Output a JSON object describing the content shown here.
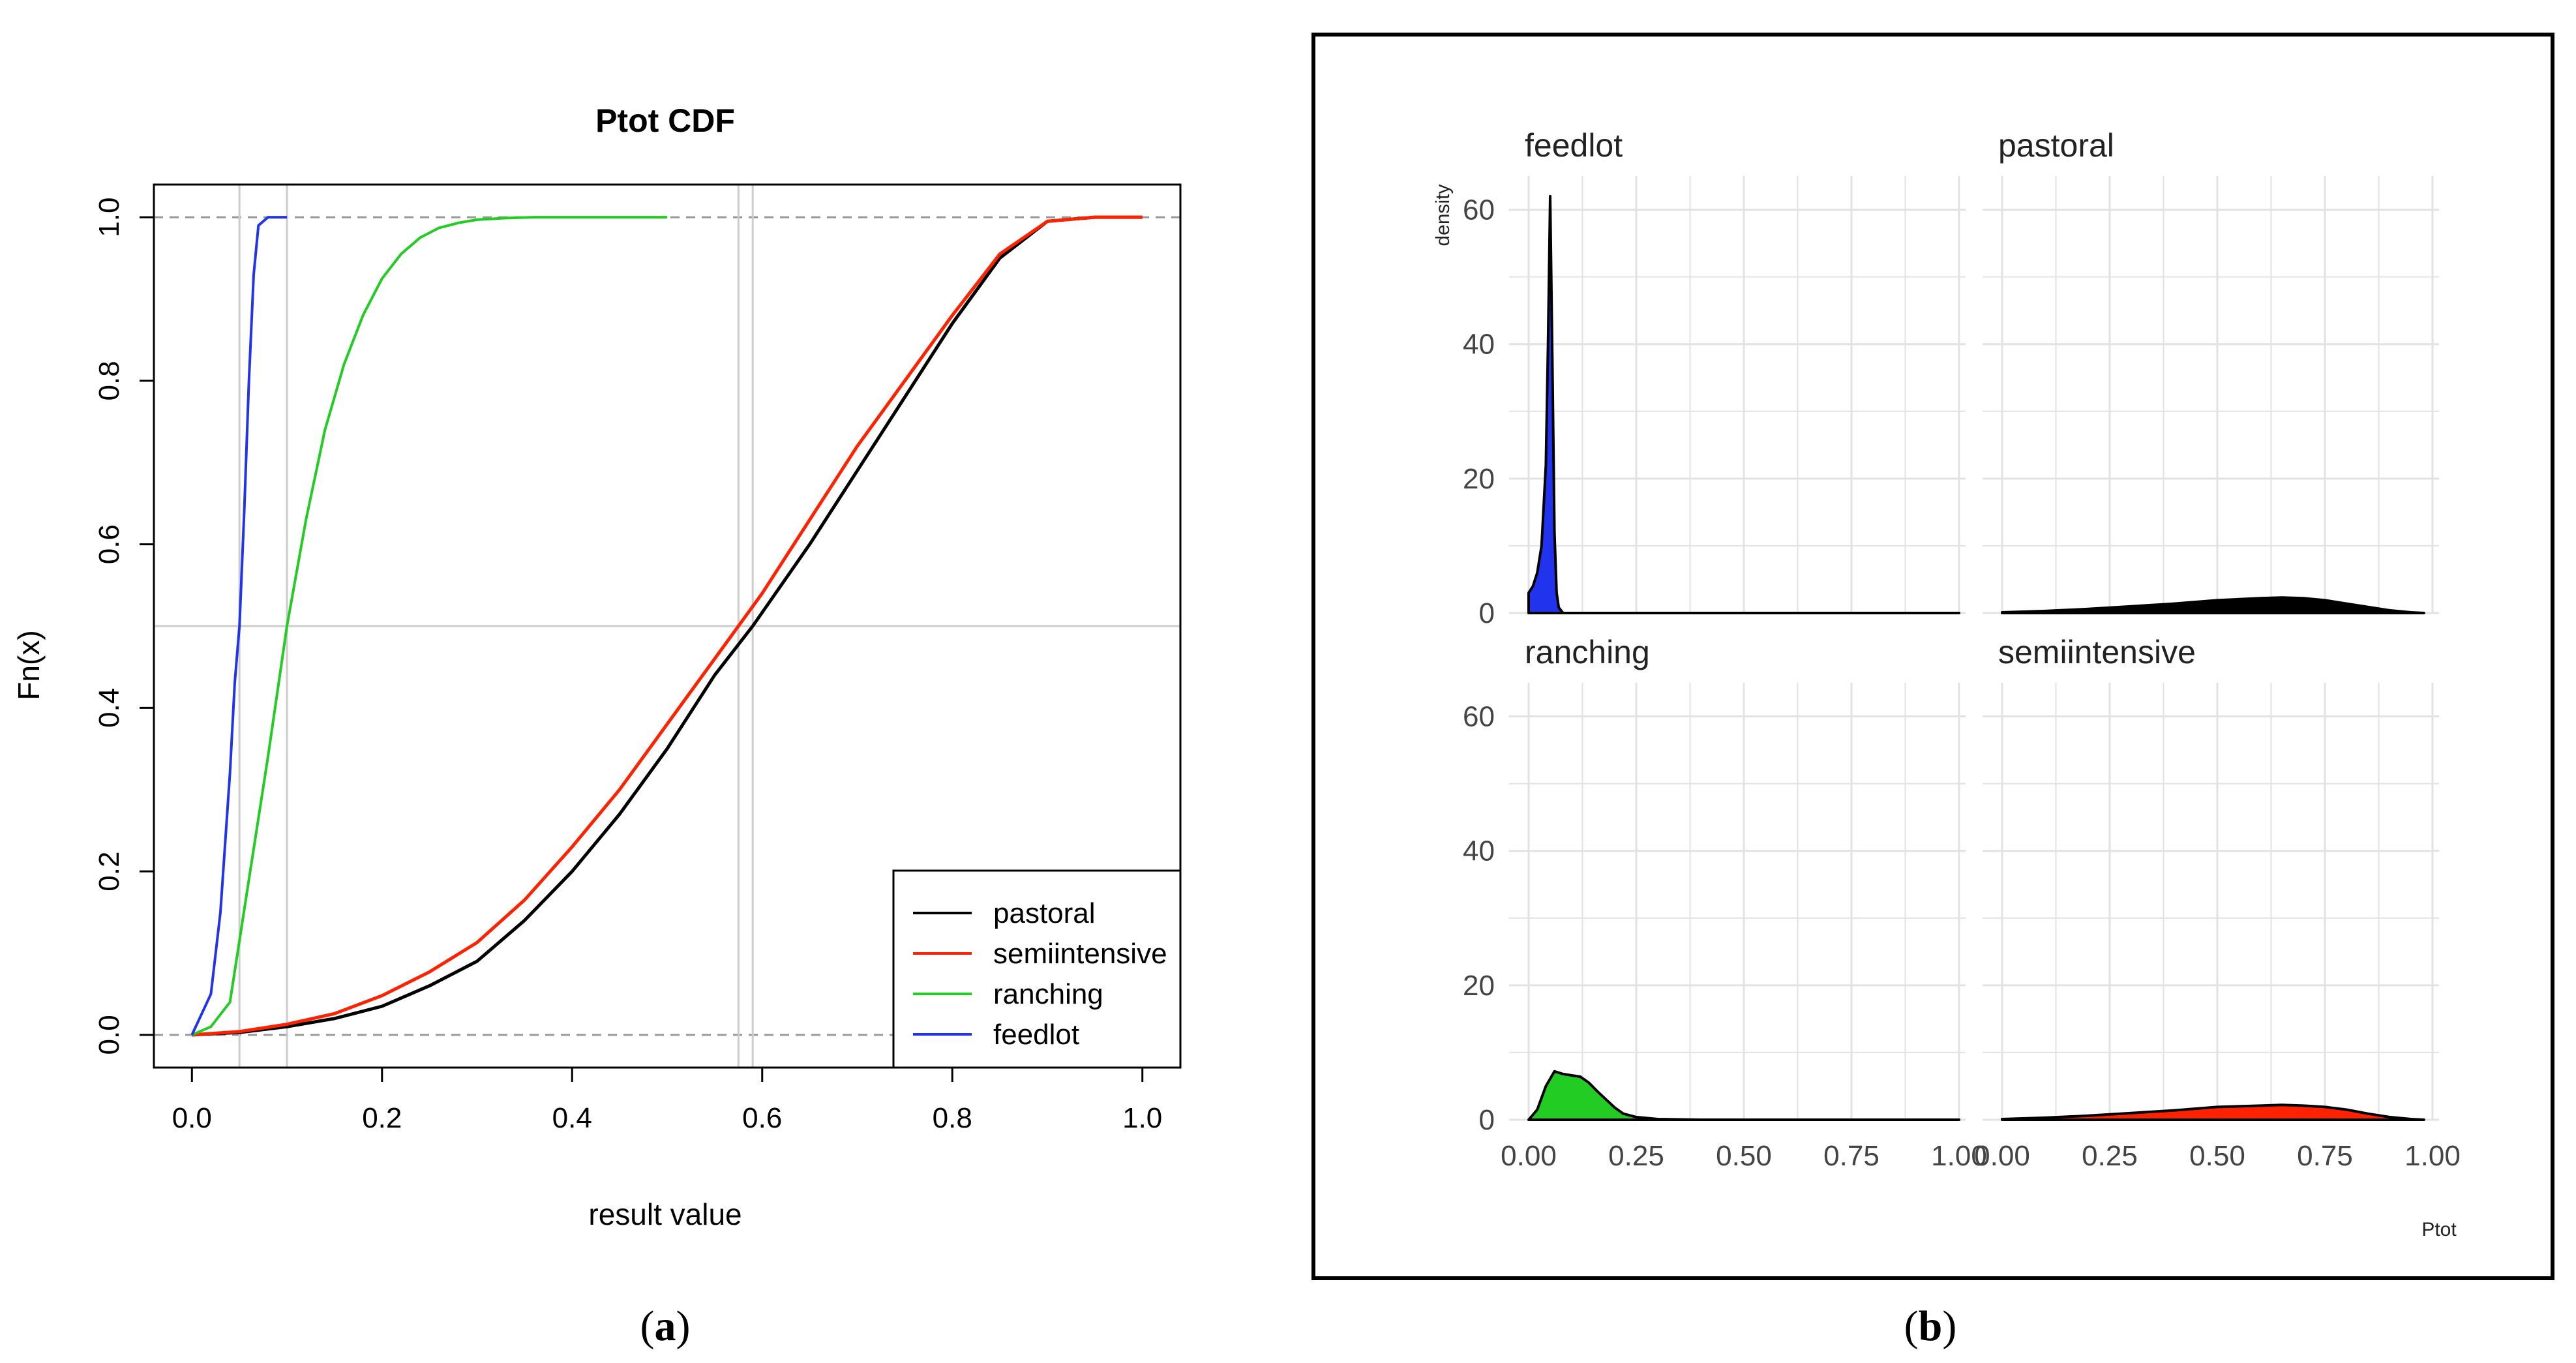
{
  "panels": {
    "a": {
      "caption_open": "(",
      "caption_letter": "a",
      "caption_close": ")"
    },
    "b": {
      "caption_open": "(",
      "caption_letter": "b",
      "caption_close": ")"
    }
  },
  "colors": {
    "pastoral": "#000000",
    "semiintensive": "#ff2200",
    "ranching": "#22cc22",
    "feedlot": "#2233ee",
    "gridline": "#cccccc",
    "facet_grid": "#e2e2e2"
  },
  "chart_data": [
    {
      "type": "line",
      "title": "Ptot CDF",
      "xlabel": "result value",
      "ylabel": "Fn(x)",
      "xlim": [
        -0.04,
        1.04
      ],
      "ylim": [
        -0.04,
        1.04
      ],
      "xticks": [
        "0.0",
        "0.2",
        "0.4",
        "0.6",
        "0.8",
        "1.0"
      ],
      "yticks": [
        "0.0",
        "0.2",
        "0.4",
        "0.6",
        "0.8",
        "1.0"
      ],
      "reference_lines": {
        "horizontal": [
          0.0,
          0.5,
          1.0
        ],
        "vertical": [
          0.05,
          0.1,
          0.575,
          0.59
        ]
      },
      "legend_position": "bottom-right",
      "series": [
        {
          "name": "pastoral",
          "x": [
            0.0,
            0.05,
            0.1,
            0.15,
            0.2,
            0.25,
            0.3,
            0.35,
            0.4,
            0.45,
            0.5,
            0.55,
            0.59,
            0.65,
            0.7,
            0.75,
            0.8,
            0.85,
            0.9,
            0.95,
            1.0
          ],
          "y": [
            0.0,
            0.003,
            0.01,
            0.02,
            0.035,
            0.06,
            0.09,
            0.14,
            0.2,
            0.27,
            0.35,
            0.44,
            0.5,
            0.6,
            0.69,
            0.78,
            0.87,
            0.95,
            0.995,
            1.0,
            1.0
          ]
        },
        {
          "name": "semiintensive",
          "x": [
            0.0,
            0.05,
            0.1,
            0.15,
            0.2,
            0.25,
            0.3,
            0.35,
            0.4,
            0.45,
            0.5,
            0.55,
            0.575,
            0.6,
            0.65,
            0.7,
            0.75,
            0.8,
            0.85,
            0.9,
            0.95,
            1.0
          ],
          "y": [
            0.0,
            0.004,
            0.013,
            0.026,
            0.048,
            0.077,
            0.113,
            0.165,
            0.23,
            0.3,
            0.38,
            0.46,
            0.5,
            0.54,
            0.63,
            0.72,
            0.8,
            0.88,
            0.955,
            0.995,
            1.0,
            1.0
          ]
        },
        {
          "name": "ranching",
          "x": [
            0.0,
            0.02,
            0.04,
            0.06,
            0.08,
            0.1,
            0.12,
            0.14,
            0.16,
            0.18,
            0.2,
            0.22,
            0.24,
            0.26,
            0.28,
            0.3,
            0.33,
            0.36,
            0.4,
            0.45,
            0.5
          ],
          "y": [
            0.0,
            0.01,
            0.04,
            0.19,
            0.34,
            0.5,
            0.63,
            0.74,
            0.82,
            0.88,
            0.925,
            0.955,
            0.975,
            0.987,
            0.993,
            0.997,
            0.999,
            1.0,
            1.0,
            1.0,
            1.0
          ]
        },
        {
          "name": "feedlot",
          "x": [
            0.0,
            0.02,
            0.03,
            0.04,
            0.045,
            0.05,
            0.055,
            0.06,
            0.065,
            0.07,
            0.08,
            0.1
          ],
          "y": [
            0.0,
            0.05,
            0.15,
            0.32,
            0.43,
            0.5,
            0.64,
            0.8,
            0.93,
            0.99,
            1.0,
            1.0
          ]
        }
      ]
    },
    {
      "type": "area",
      "xlabel": "Ptot",
      "ylabel": "density",
      "xlim": [
        0,
        1
      ],
      "ylim": [
        0,
        65
      ],
      "xticks": [
        "0.00",
        "0.25",
        "0.50",
        "0.75",
        "1.00"
      ],
      "yticks": [
        "0",
        "20",
        "40",
        "60"
      ],
      "facets": [
        {
          "name": "feedlot",
          "fill": "blue",
          "x": [
            0.0,
            0.01,
            0.02,
            0.03,
            0.04,
            0.045,
            0.05,
            0.055,
            0.06,
            0.065,
            0.07,
            0.08,
            0.1,
            0.3,
            0.6,
            1.0
          ],
          "y": [
            3,
            4,
            6,
            10,
            22,
            40,
            62,
            38,
            12,
            3,
            0.8,
            0,
            0,
            0,
            0,
            0
          ]
        },
        {
          "name": "pastoral",
          "fill": "black",
          "x": [
            0.0,
            0.1,
            0.2,
            0.3,
            0.4,
            0.5,
            0.6,
            0.65,
            0.7,
            0.75,
            0.8,
            0.85,
            0.9,
            0.95,
            0.98
          ],
          "y": [
            0.1,
            0.3,
            0.6,
            1.0,
            1.4,
            1.9,
            2.2,
            2.3,
            2.2,
            1.9,
            1.4,
            0.9,
            0.4,
            0.1,
            0.0
          ]
        },
        {
          "name": "ranching",
          "fill": "green",
          "x": [
            0.0,
            0.02,
            0.04,
            0.06,
            0.08,
            0.1,
            0.12,
            0.14,
            0.16,
            0.18,
            0.2,
            0.22,
            0.25,
            0.3,
            0.4,
            0.6,
            1.0
          ],
          "y": [
            0,
            1.5,
            5,
            7.2,
            6.8,
            6.6,
            6.4,
            5.5,
            4.2,
            3.0,
            1.8,
            0.9,
            0.4,
            0.1,
            0,
            0,
            0
          ]
        },
        {
          "name": "semiintensive",
          "fill": "red",
          "x": [
            0.0,
            0.1,
            0.2,
            0.3,
            0.4,
            0.5,
            0.6,
            0.65,
            0.7,
            0.75,
            0.8,
            0.85,
            0.9,
            0.95,
            0.98
          ],
          "y": [
            0.1,
            0.3,
            0.6,
            1.0,
            1.4,
            1.9,
            2.1,
            2.2,
            2.1,
            1.9,
            1.5,
            0.9,
            0.4,
            0.1,
            0.0
          ]
        }
      ]
    }
  ]
}
